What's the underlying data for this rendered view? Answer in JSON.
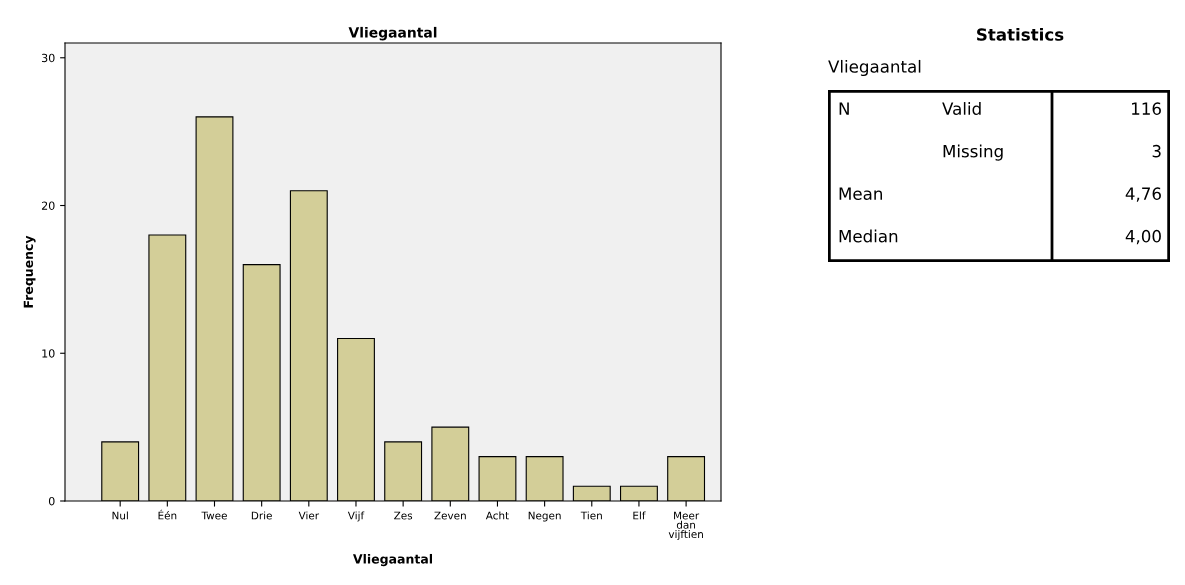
{
  "chart_data": [
    {
      "type": "bar",
      "title": "Vliegaantal",
      "xlabel": "Vliegaantal",
      "ylabel": "Frequency",
      "categories": [
        "Nul",
        "Één",
        "Twee",
        "Drie",
        "Vier",
        "Vijf",
        "Zes",
        "Zeven",
        "Acht",
        "Negen",
        "Tien",
        "Elf",
        "Meer\ndan\nvijftien"
      ],
      "values": [
        4,
        18,
        26,
        16,
        21,
        11,
        4,
        5,
        3,
        3,
        1,
        1,
        3
      ],
      "color": "#d3ce98",
      "ylim": [
        0,
        31
      ],
      "yticks": [
        0,
        10,
        20,
        30
      ],
      "grid": false,
      "legend": false
    },
    {
      "type": "other",
      "title": "Statistics",
      "subtitle": "Vliegaantal",
      "cell_labels": [
        [
          "N",
          "Valid",
          "116"
        ],
        [
          null,
          "Missing",
          "3"
        ],
        [
          "Mean",
          null,
          "4,76"
        ],
        [
          "Median",
          null,
          "4,00"
        ]
      ]
    }
  ]
}
